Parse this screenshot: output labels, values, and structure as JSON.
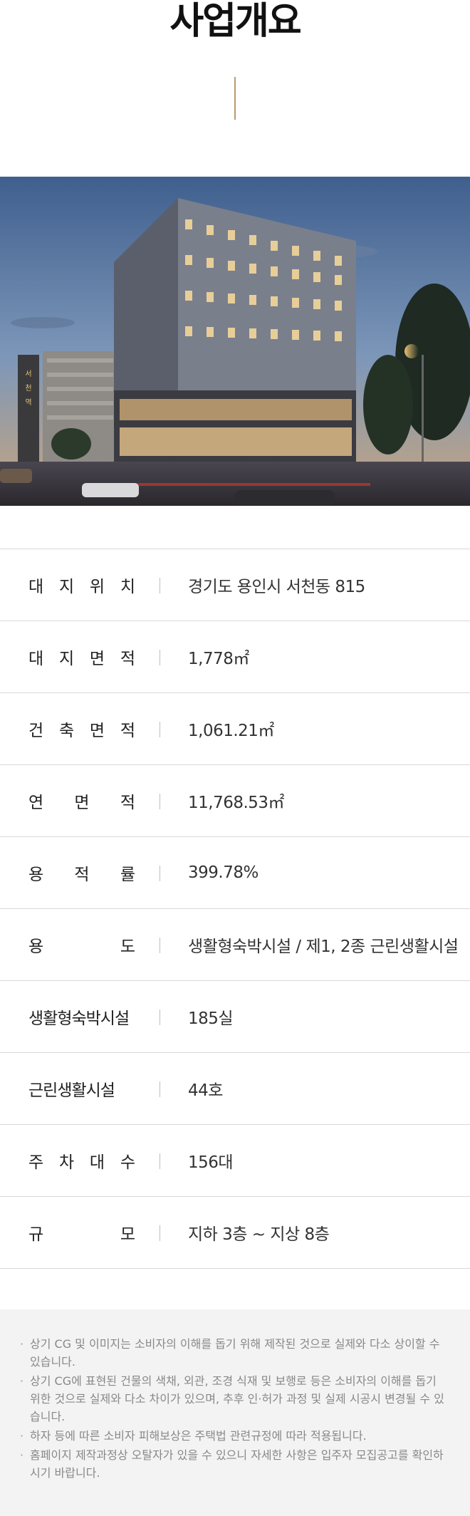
{
  "header": {
    "title": "사업개요"
  },
  "specs": [
    {
      "label_chars": [
        "대",
        "지",
        "위",
        "치"
      ],
      "value": "경기도 용인시 서천동 815"
    },
    {
      "label_chars": [
        "대",
        "지",
        "면",
        "적"
      ],
      "value": "1,778㎡"
    },
    {
      "label_chars": [
        "건",
        "축",
        "면",
        "적"
      ],
      "value": "1,061.21㎡"
    },
    {
      "label_chars": [
        "연",
        "면",
        "적"
      ],
      "value": "11,768.53㎡"
    },
    {
      "label_chars": [
        "용",
        "적",
        "률"
      ],
      "value": "399.78%"
    },
    {
      "label_chars": [
        "용",
        "도"
      ],
      "value": "생활형숙박시설 / 제1, 2종 근린생활시설"
    },
    {
      "label_chars": [
        "생활형숙박시설"
      ],
      "value": "185실"
    },
    {
      "label_chars": [
        "근린생활시설"
      ],
      "value": "44호"
    },
    {
      "label_chars": [
        "주",
        "차",
        "대",
        "수"
      ],
      "value": "156대"
    },
    {
      "label_chars": [
        "규",
        "모"
      ],
      "value": "지하 3층 ~ 지상 8층"
    }
  ],
  "hero": {
    "tower_sign": "서천역"
  },
  "notice": {
    "items": [
      "상기 CG 및 이미지는 소비자의 이해를 돕기 위해 제작된 것으로 실제와 다소 상이할 수 있습니다.",
      "상기 CG에 표현된 건물의 색채, 외관, 조경 식재 및 보행로 등은 소비자의 이해를 돕기 위한 것으로 실제와 다소 차이가 있으며, 추후 인·허가 과정 및 실제 시공시 변경될 수 있습니다.",
      "하자 등에 따른 소비자 피해보상은 주택법 관련규정에 따라 적용됩니다.",
      "홈페이지 제작과정상 오탈자가 있을 수 있으니 자세한 사항은 입주자 모집공고를 확인하시기 바랍니다."
    ]
  },
  "colors": {
    "accent_line": "#b89a6e",
    "divider": "#d9d9d9",
    "notice_bg": "#f3f3f3"
  }
}
